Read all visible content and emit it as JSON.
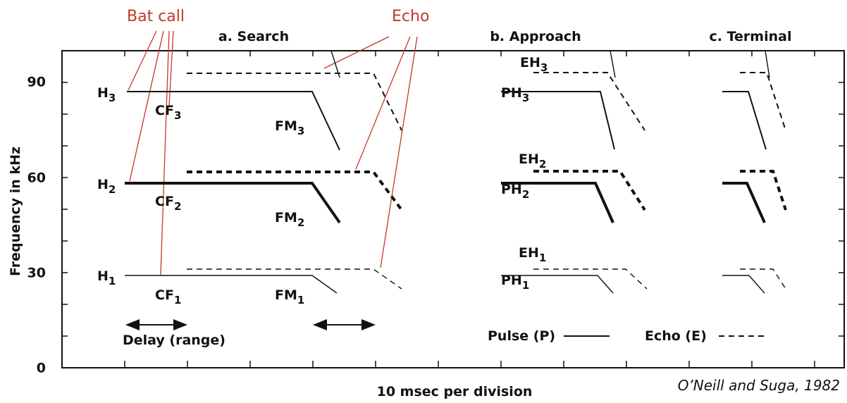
{
  "annotations": {
    "bat_call": "Bat call",
    "echo": "Echo"
  },
  "panels": [
    "a. Search",
    "b. Approach",
    "c. Terminal"
  ],
  "axis": {
    "y_label": "Frequency in kHz",
    "x_label": "10 msec per division",
    "y_ticks": [
      "0",
      "30",
      "60",
      "90"
    ]
  },
  "labels": [
    {
      "base": "H",
      "sub": "3"
    },
    {
      "base": "CF",
      "sub": "3"
    },
    {
      "base": "FM",
      "sub": "3"
    },
    {
      "base": "H",
      "sub": "2"
    },
    {
      "base": "CF",
      "sub": "2"
    },
    {
      "base": "FM",
      "sub": "2"
    },
    {
      "base": "H",
      "sub": "1"
    },
    {
      "base": "CF",
      "sub": "1"
    },
    {
      "base": "FM",
      "sub": "1"
    },
    {
      "base": "EH",
      "sub": "3"
    },
    {
      "base": "PH",
      "sub": "3"
    },
    {
      "base": "EH",
      "sub": "2"
    },
    {
      "base": "PH",
      "sub": "2"
    },
    {
      "base": "EH",
      "sub": "1"
    },
    {
      "base": "PH",
      "sub": "1"
    }
  ],
  "delay_label": "Delay (range)",
  "legend": {
    "pulse": "Pulse (P)",
    "echo": "Echo (E)"
  },
  "credit": "O’Neill and Suga, 1982"
}
